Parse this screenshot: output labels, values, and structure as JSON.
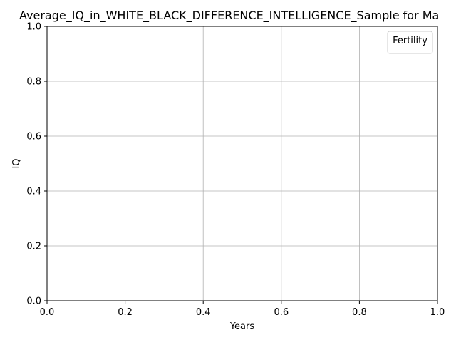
{
  "chart_data": {
    "type": "line",
    "title": "Average_IQ_in_WHITE_BLACK_DIFFERENCE_INTELLIGENCE_Sample for Ma",
    "xlabel": "Years",
    "ylabel": "IQ",
    "xlim": [
      0.0,
      1.0
    ],
    "ylim": [
      0.0,
      1.0
    ],
    "xticks": [
      "0.0",
      "0.2",
      "0.4",
      "0.6",
      "0.8",
      "1.0"
    ],
    "yticks": [
      "0.0",
      "0.2",
      "0.4",
      "0.6",
      "0.8",
      "1.0"
    ],
    "grid": true,
    "legend": {
      "title": "Fertility",
      "placement": "upper-right",
      "entries": []
    },
    "series": []
  }
}
